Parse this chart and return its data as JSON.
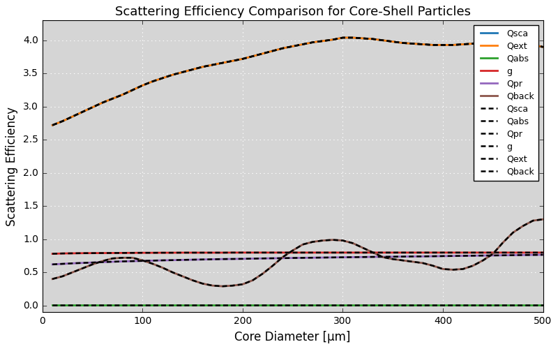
{
  "title": "Scattering Efficiency Comparison for Core-Shell Particles",
  "xlabel": "Core Diameter [μm]",
  "ylabel": "Scattering Efficiency",
  "xlim": [
    0,
    500
  ],
  "ylim": [
    -0.1,
    4.3
  ],
  "background_color": "#d5d5d5",
  "grid_color": "white",
  "colors": {
    "Qsca": "#1f77b4",
    "Qext": "#ff7f0e",
    "Qabs": "#2ca02c",
    "g": "#d62728",
    "Qpr": "#9467bd",
    "Qback": "#8c564b"
  },
  "x": [
    10,
    20,
    30,
    40,
    50,
    60,
    70,
    80,
    90,
    100,
    110,
    120,
    130,
    140,
    150,
    160,
    170,
    180,
    190,
    200,
    210,
    220,
    230,
    240,
    250,
    260,
    270,
    280,
    290,
    300,
    310,
    320,
    330,
    340,
    350,
    360,
    370,
    380,
    390,
    400,
    410,
    420,
    430,
    440,
    450,
    460,
    470,
    480,
    490,
    500
  ],
  "Qext": [
    2.72,
    2.78,
    2.85,
    2.92,
    2.99,
    3.06,
    3.12,
    3.18,
    3.25,
    3.32,
    3.38,
    3.43,
    3.48,
    3.52,
    3.56,
    3.6,
    3.63,
    3.66,
    3.69,
    3.72,
    3.76,
    3.8,
    3.84,
    3.88,
    3.91,
    3.94,
    3.97,
    3.99,
    4.01,
    4.04,
    4.04,
    4.03,
    4.02,
    4.0,
    3.98,
    3.96,
    3.95,
    3.94,
    3.93,
    3.93,
    3.93,
    3.94,
    3.95,
    3.97,
    4.0,
    4.01,
    3.99,
    3.96,
    3.93,
    3.9
  ],
  "Qsca": [
    2.72,
    2.78,
    2.85,
    2.92,
    2.99,
    3.06,
    3.12,
    3.18,
    3.25,
    3.32,
    3.38,
    3.43,
    3.48,
    3.52,
    3.56,
    3.6,
    3.63,
    3.66,
    3.69,
    3.72,
    3.76,
    3.8,
    3.84,
    3.88,
    3.91,
    3.94,
    3.97,
    3.99,
    4.01,
    4.04,
    4.04,
    4.03,
    4.02,
    4.0,
    3.98,
    3.96,
    3.95,
    3.94,
    3.93,
    3.93,
    3.93,
    3.94,
    3.95,
    3.97,
    4.0,
    4.01,
    3.99,
    3.96,
    3.93,
    3.9
  ],
  "Qabs": [
    0.005,
    0.005,
    0.005,
    0.005,
    0.005,
    0.005,
    0.005,
    0.005,
    0.005,
    0.005,
    0.005,
    0.005,
    0.005,
    0.005,
    0.005,
    0.005,
    0.005,
    0.005,
    0.005,
    0.005,
    0.005,
    0.005,
    0.005,
    0.005,
    0.005,
    0.005,
    0.005,
    0.005,
    0.005,
    0.005,
    0.005,
    0.005,
    0.005,
    0.005,
    0.005,
    0.005,
    0.005,
    0.005,
    0.005,
    0.005,
    0.005,
    0.005,
    0.005,
    0.005,
    0.005,
    0.005,
    0.005,
    0.005,
    0.005,
    0.005
  ],
  "g": [
    0.78,
    0.785,
    0.787,
    0.789,
    0.79,
    0.791,
    0.792,
    0.793,
    0.794,
    0.795,
    0.795,
    0.796,
    0.796,
    0.797,
    0.797,
    0.797,
    0.797,
    0.797,
    0.798,
    0.798,
    0.798,
    0.798,
    0.798,
    0.798,
    0.798,
    0.798,
    0.798,
    0.798,
    0.798,
    0.798,
    0.798,
    0.798,
    0.798,
    0.798,
    0.798,
    0.798,
    0.798,
    0.798,
    0.798,
    0.798,
    0.798,
    0.798,
    0.798,
    0.798,
    0.798,
    0.798,
    0.798,
    0.798,
    0.798,
    0.798
  ],
  "Qpr": [
    0.62,
    0.628,
    0.636,
    0.642,
    0.648,
    0.654,
    0.66,
    0.665,
    0.669,
    0.673,
    0.677,
    0.681,
    0.684,
    0.688,
    0.691,
    0.694,
    0.697,
    0.7,
    0.702,
    0.704,
    0.707,
    0.71,
    0.712,
    0.714,
    0.717,
    0.719,
    0.721,
    0.723,
    0.725,
    0.727,
    0.729,
    0.731,
    0.733,
    0.735,
    0.736,
    0.738,
    0.74,
    0.741,
    0.743,
    0.745,
    0.747,
    0.749,
    0.751,
    0.753,
    0.755,
    0.757,
    0.759,
    0.761,
    0.763,
    0.765
  ],
  "Qback": [
    0.4,
    0.44,
    0.5,
    0.56,
    0.62,
    0.67,
    0.71,
    0.72,
    0.72,
    0.68,
    0.63,
    0.57,
    0.5,
    0.44,
    0.38,
    0.33,
    0.3,
    0.29,
    0.3,
    0.32,
    0.38,
    0.48,
    0.6,
    0.73,
    0.83,
    0.92,
    0.96,
    0.98,
    0.99,
    0.98,
    0.94,
    0.87,
    0.8,
    0.73,
    0.7,
    0.68,
    0.66,
    0.64,
    0.6,
    0.55,
    0.54,
    0.55,
    0.6,
    0.68,
    0.78,
    0.95,
    1.1,
    1.2,
    1.28,
    1.3
  ],
  "xticks": [
    0,
    100,
    200,
    300,
    400,
    500
  ],
  "yticks": [
    0.0,
    0.5,
    1.0,
    1.5,
    2.0,
    2.5,
    3.0,
    3.5,
    4.0
  ],
  "title_fontsize": 13,
  "label_fontsize": 12,
  "legend_fontsize": 9,
  "linewidth_solid": 2.0,
  "linewidth_dashed": 1.8
}
